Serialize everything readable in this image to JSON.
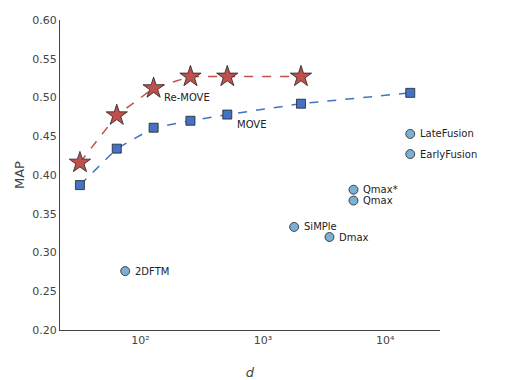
{
  "chart_data": {
    "type": "line",
    "xlabel": "d",
    "ylabel": "MAP",
    "log": "x",
    "grid": false,
    "xlim": [
      22,
      28000
    ],
    "ylim": [
      0.2,
      0.6
    ],
    "xticks": [
      {
        "value": 100,
        "label": "10²"
      },
      {
        "value": 1000,
        "label": "10³"
      },
      {
        "value": 10000,
        "label": "10⁴"
      }
    ],
    "yticks": [
      {
        "value": 0.2,
        "label": "0.20"
      },
      0.25,
      {
        "value": 0.3,
        "label": "0.30"
      },
      0.35,
      {
        "value": 0.4,
        "label": "0.40"
      },
      0.45,
      {
        "value": 0.5,
        "label": "0.50"
      },
      0.55,
      {
        "value": 0.6,
        "label": "0.60"
      }
    ],
    "series": [
      {
        "type": "line",
        "x": [
          32,
          64,
          128,
          256,
          512,
          2048
        ],
        "values": [
          0.416,
          0.477,
          0.512,
          0.527,
          0.527,
          0.527
        ],
        "color": "#c0504d",
        "marker": "star",
        "line_style": "dashed"
      },
      {
        "type": "line",
        "x": [
          32,
          64,
          128,
          256,
          512,
          2048,
          16000
        ],
        "values": [
          0.387,
          0.434,
          0.461,
          0.47,
          0.478,
          0.492,
          0.506
        ],
        "color": "#4472c4",
        "marker": "square",
        "line_style": "dashed"
      },
      {
        "type": "scatter",
        "x": [
          75,
          1800,
          3500,
          5500,
          5500,
          16000,
          16000
        ],
        "values": [
          0.276,
          0.333,
          0.32,
          0.367,
          0.381,
          0.427,
          0.453
        ],
        "color": "#7bafd4",
        "marker": "circle"
      }
    ],
    "annotations": [
      {
        "text": "2DFTM",
        "x": 75,
        "y": 0.276
      },
      {
        "text": "SiMPle",
        "x": 1800,
        "y": 0.333
      },
      {
        "text": "Dmax",
        "x": 3500,
        "y": 0.32
      },
      {
        "text": "Qmax",
        "x": 5500,
        "y": 0.367
      },
      {
        "text": "Qmax*",
        "x": 5500,
        "y": 0.381
      },
      {
        "text": "EarlyFusion",
        "x": 16000,
        "y": 0.427
      },
      {
        "text": "LateFusion",
        "x": 16000,
        "y": 0.453
      },
      {
        "text": "Re-MOVE",
        "x": 128,
        "y": 0.512,
        "position": "below"
      },
      {
        "text": "MOVE",
        "x": 512,
        "y": 0.478,
        "position": "below"
      }
    ]
  }
}
